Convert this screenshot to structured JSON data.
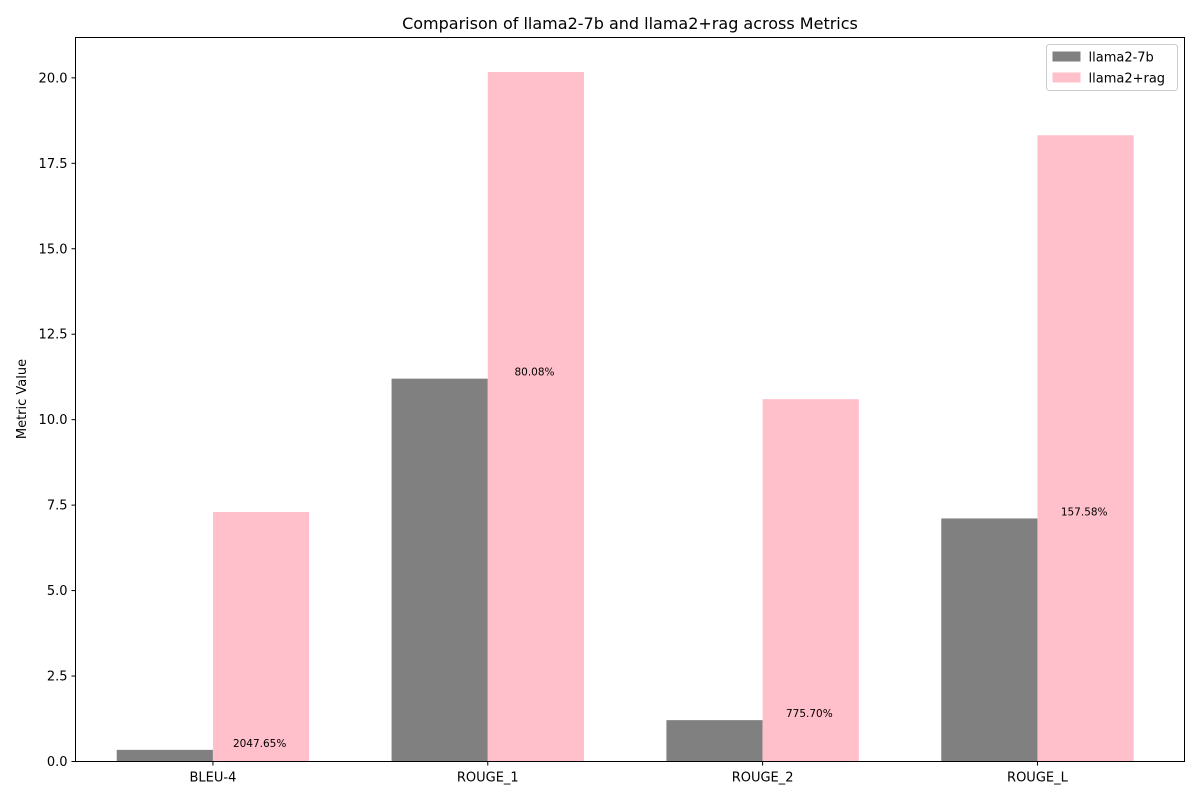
{
  "chart_data": {
    "type": "bar",
    "title": "Comparison of llama2-7b and llama2+rag across Metrics",
    "xlabel": "",
    "ylabel": "Metric Value",
    "categories": [
      "BLEU-4",
      "ROUGE_1",
      "ROUGE_2",
      "ROUGE_L"
    ],
    "series": [
      {
        "name": "llama2-7b",
        "color": "#808080",
        "values": [
          0.34,
          11.2,
          1.21,
          7.11
        ]
      },
      {
        "name": "llama2+rag",
        "color": "#ffc0cb",
        "values": [
          7.3,
          20.17,
          10.6,
          18.32
        ]
      }
    ],
    "annotations": [
      "2047.65%",
      "80.08%",
      "775.70%",
      "157.58%"
    ],
    "ylim": [
      0,
      21.18
    ],
    "yticks": [
      "0.0",
      "2.5",
      "5.0",
      "7.5",
      "10.0",
      "12.5",
      "15.0",
      "17.5",
      "20.0"
    ],
    "grid": false,
    "legend_position": "top-right"
  }
}
